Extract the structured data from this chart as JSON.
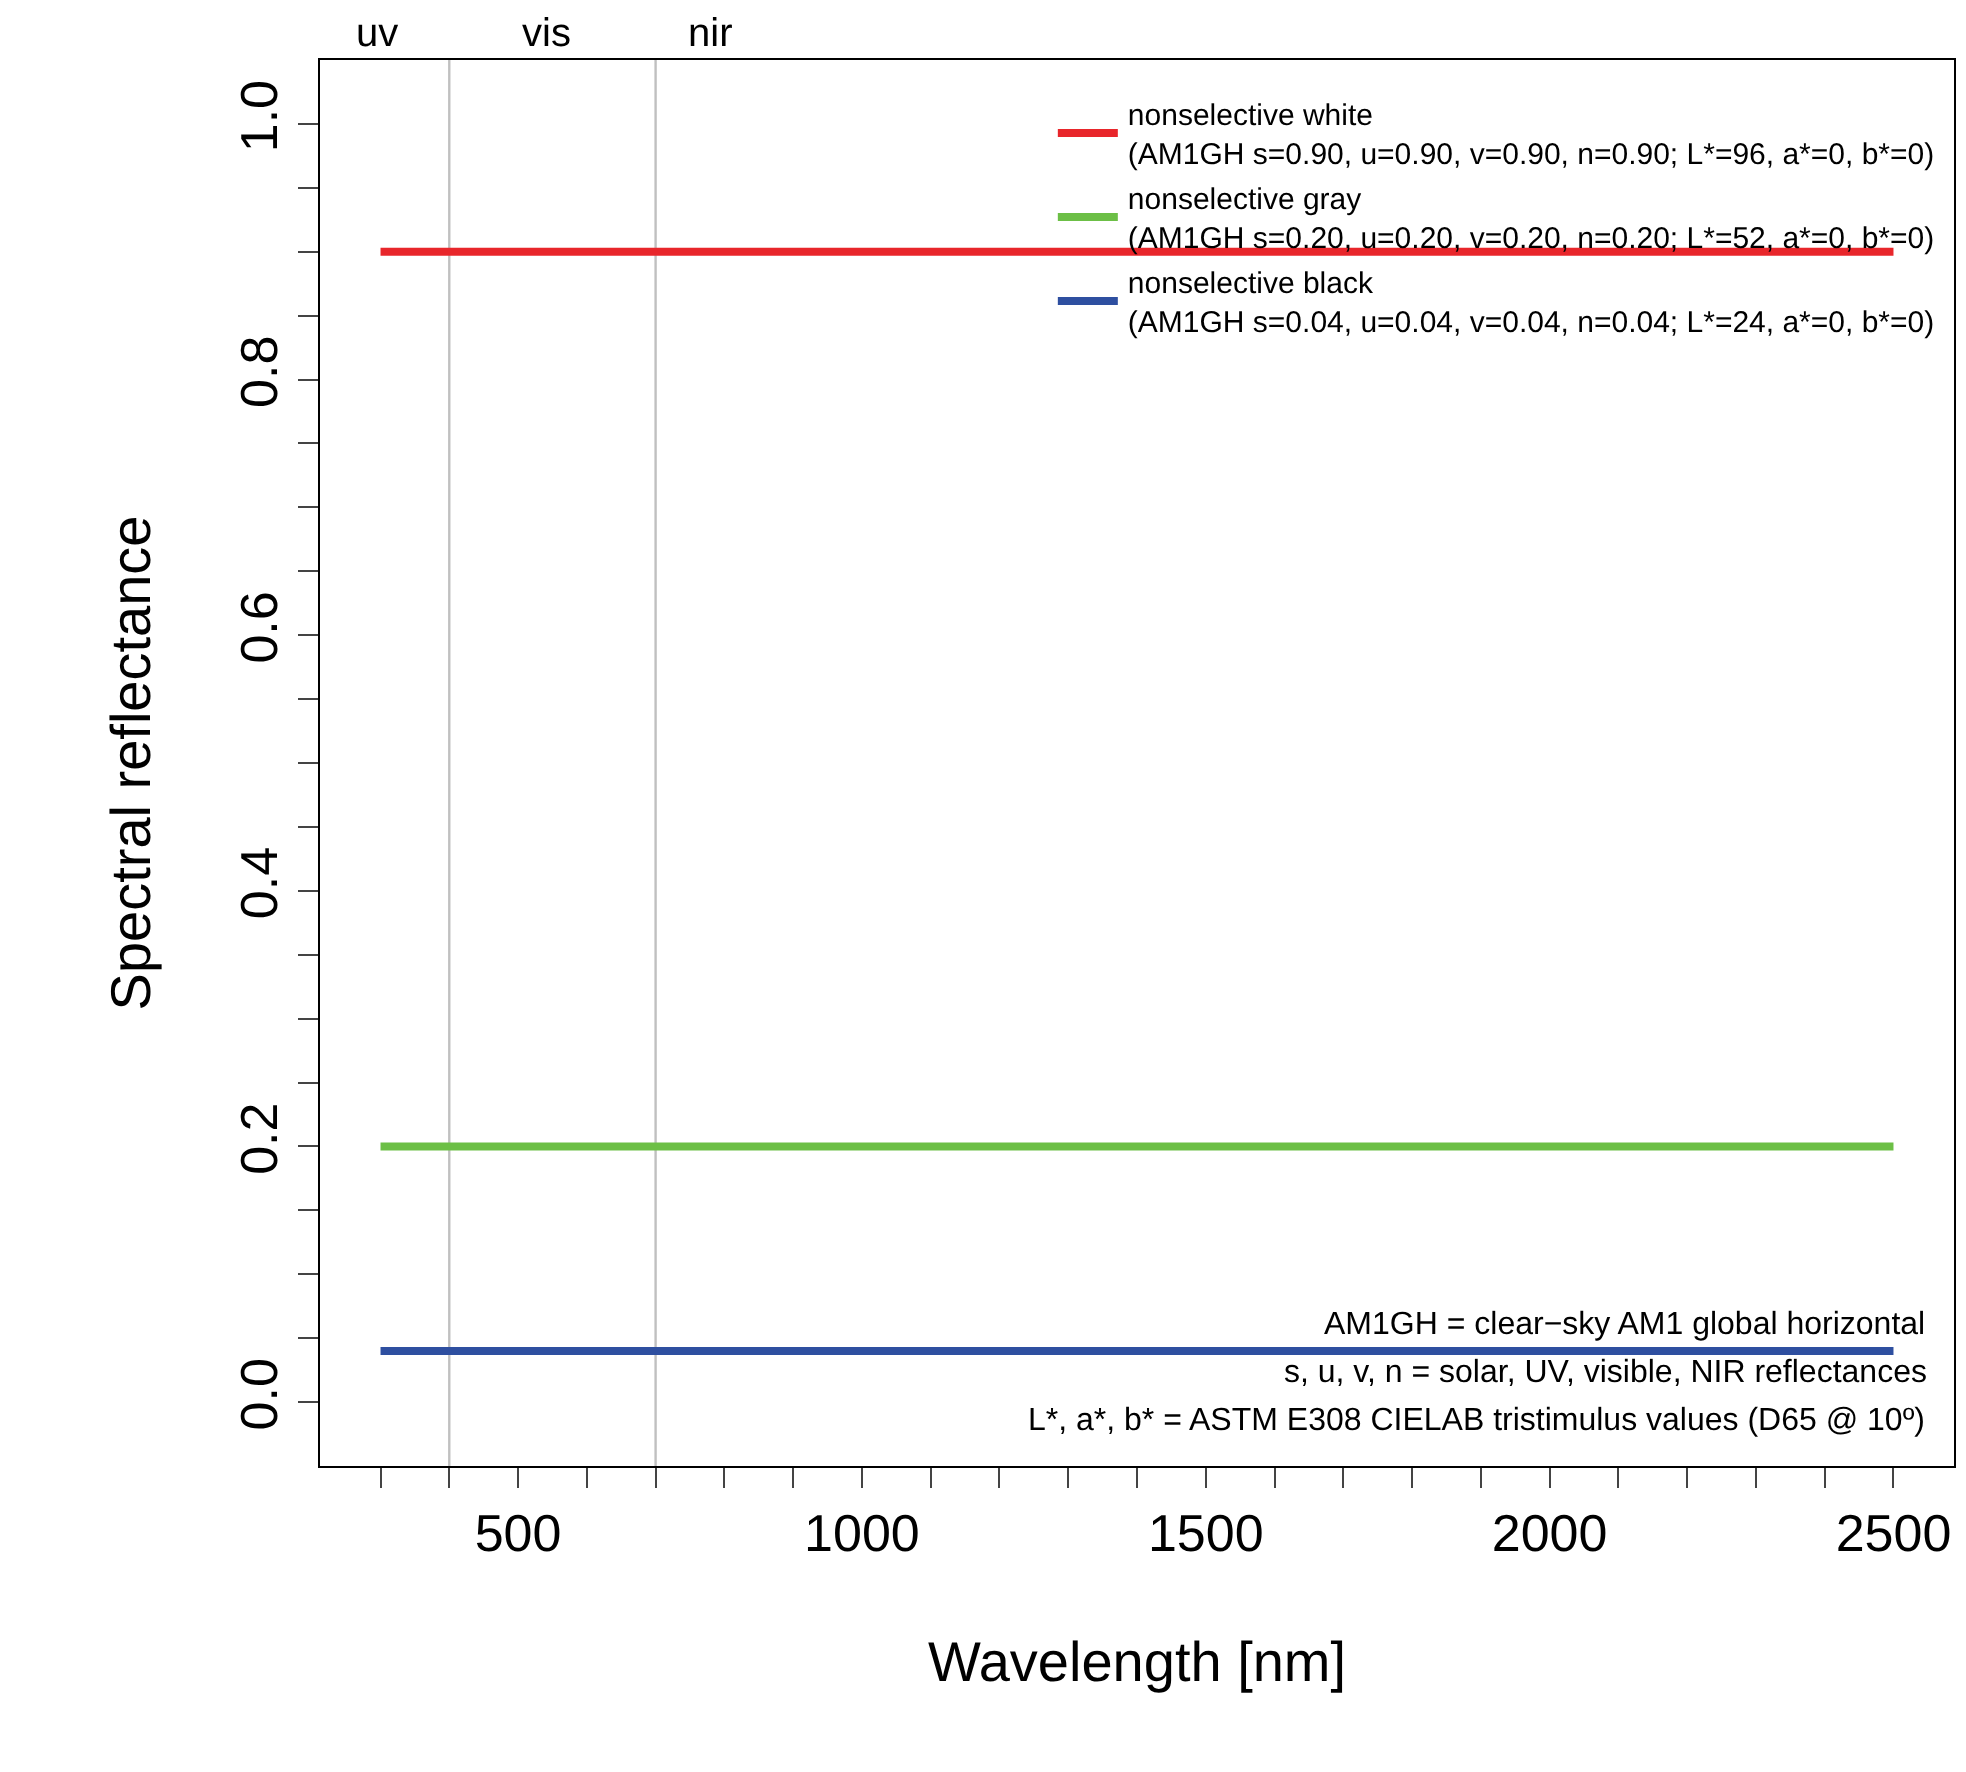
{
  "chart_data": {
    "type": "line",
    "xlabel": "Wavelength [nm]",
    "ylabel": "Spectral reflectance",
    "x": [
      300,
      2500
    ],
    "series": [
      {
        "name": "nonselective white\n(AM1GH s=0.90, u=0.90, v=0.90, n=0.90; L*=96, a*=0, b*=0)",
        "color": "#e8262b",
        "values": [
          0.9,
          0.9
        ]
      },
      {
        "name": "nonselective gray\n(AM1GH s=0.20, u=0.20, v=0.20, n=0.20; L*=52, a*=0, b*=0)",
        "color": "#6cbf46",
        "values": [
          0.2,
          0.2
        ]
      },
      {
        "name": "nonselective black\n(AM1GH s=0.04, u=0.04, v=0.04, n=0.04; L*=24, a*=0, b*=0)",
        "color": "#2e4fa0",
        "values": [
          0.04,
          0.04
        ]
      }
    ],
    "xlim": [
      212,
      2588
    ],
    "xticks": [
      {
        "value": 300,
        "label": null
      },
      {
        "value": 400,
        "label": null
      },
      500,
      {
        "value": 600,
        "label": null
      },
      {
        "value": 700,
        "label": null
      },
      {
        "value": 800,
        "label": null
      },
      {
        "value": 900,
        "label": null
      },
      1000,
      {
        "value": 1100,
        "label": null
      },
      {
        "value": 1200,
        "label": null
      },
      {
        "value": 1300,
        "label": null
      },
      {
        "value": 1400,
        "label": null
      },
      1500,
      {
        "value": 1600,
        "label": null
      },
      {
        "value": 1700,
        "label": null
      },
      {
        "value": 1800,
        "label": null
      },
      {
        "value": 1900,
        "label": null
      },
      2000,
      {
        "value": 2100,
        "label": null
      },
      {
        "value": 2200,
        "label": null
      },
      {
        "value": 2300,
        "label": null
      },
      {
        "value": 2400,
        "label": null
      },
      2500
    ],
    "ylim": [
      -0.05,
      1.05
    ],
    "yticks": [
      {
        "value": 0,
        "label": "0.0"
      },
      {
        "value": 0.05,
        "label": null
      },
      {
        "value": 0.1,
        "label": null
      },
      {
        "value": 0.15,
        "label": null
      },
      0.2,
      {
        "value": 0.25,
        "label": null
      },
      {
        "value": 0.3,
        "label": null
      },
      {
        "value": 0.35,
        "label": null
      },
      0.4,
      {
        "value": 0.45,
        "label": null
      },
      {
        "value": 0.5,
        "label": null
      },
      {
        "value": 0.55,
        "label": null
      },
      0.6,
      {
        "value": 0.65,
        "label": null
      },
      {
        "value": 0.7,
        "label": null
      },
      {
        "value": 0.75,
        "label": null
      },
      0.8,
      {
        "value": 0.85,
        "label": null
      },
      {
        "value": 0.9,
        "label": null
      },
      {
        "value": 0.95,
        "label": null
      },
      {
        "value": 1,
        "label": "1.0"
      }
    ],
    "ref_lines": [
      {
        "axis": "x",
        "value": 400,
        "color": "#c0c0c0"
      },
      {
        "axis": "x",
        "value": 700,
        "color": "#c0c0c0"
      }
    ],
    "annotations": [
      "uv",
      "vis",
      "nir",
      "AM1GH = clear−sky AM1 global horizontal\ns, u, v, n = solar, UV, visible, NIR reflectances\nL*, a*, b* = ASTM E308 CIELAB tristimulus values (D65 @ 10º)"
    ],
    "grid": false,
    "legend": "top right",
    "marker": "none",
    "line_style": "solid"
  }
}
